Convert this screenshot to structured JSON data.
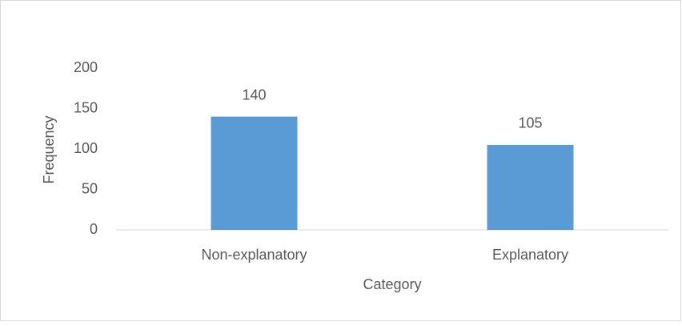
{
  "chart_data": {
    "type": "bar",
    "categories": [
      "Non-explanatory",
      "Explanatory"
    ],
    "values": [
      140,
      105
    ],
    "color": "#5b9bd5",
    "ylim": [
      0,
      200
    ],
    "yticks": [
      0,
      50,
      100,
      150,
      200
    ],
    "x_label": "Category",
    "y_label": "Frequency",
    "data_labels": true
  }
}
